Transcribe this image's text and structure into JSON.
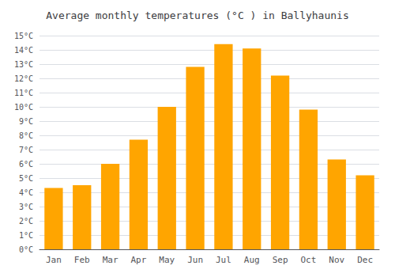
{
  "chart_data": {
    "type": "bar",
    "title": "Average monthly temperatures (°C ) in Ballyhaunis",
    "categories": [
      "Jan",
      "Feb",
      "Mar",
      "Apr",
      "May",
      "Jun",
      "Jul",
      "Aug",
      "Sep",
      "Oct",
      "Nov",
      "Dec"
    ],
    "values": [
      4.3,
      4.5,
      6.0,
      7.7,
      10.0,
      12.8,
      14.4,
      14.1,
      12.2,
      9.8,
      6.3,
      5.2
    ],
    "color": "#FFA500",
    "ylim": [
      0,
      15
    ],
    "yticks": [
      {
        "value": 0,
        "label": "0°C"
      },
      {
        "value": 1,
        "label": "1°C"
      },
      {
        "value": 2,
        "label": "2°C"
      },
      {
        "value": 3,
        "label": "3°C"
      },
      {
        "value": 4,
        "label": "4°C"
      },
      {
        "value": 5,
        "label": "5°C"
      },
      {
        "value": 6,
        "label": "6°C"
      },
      {
        "value": 7,
        "label": "7°C"
      },
      {
        "value": 8,
        "label": "8°C"
      },
      {
        "value": 9,
        "label": "9°C"
      },
      {
        "value": 10,
        "label": "10°C"
      },
      {
        "value": 11,
        "label": "11°C"
      },
      {
        "value": 12,
        "label": "12°C"
      },
      {
        "value": 13,
        "label": "13°C"
      },
      {
        "value": 14,
        "label": "14°C"
      },
      {
        "value": 15,
        "label": "15°C"
      }
    ],
    "grid": true
  }
}
